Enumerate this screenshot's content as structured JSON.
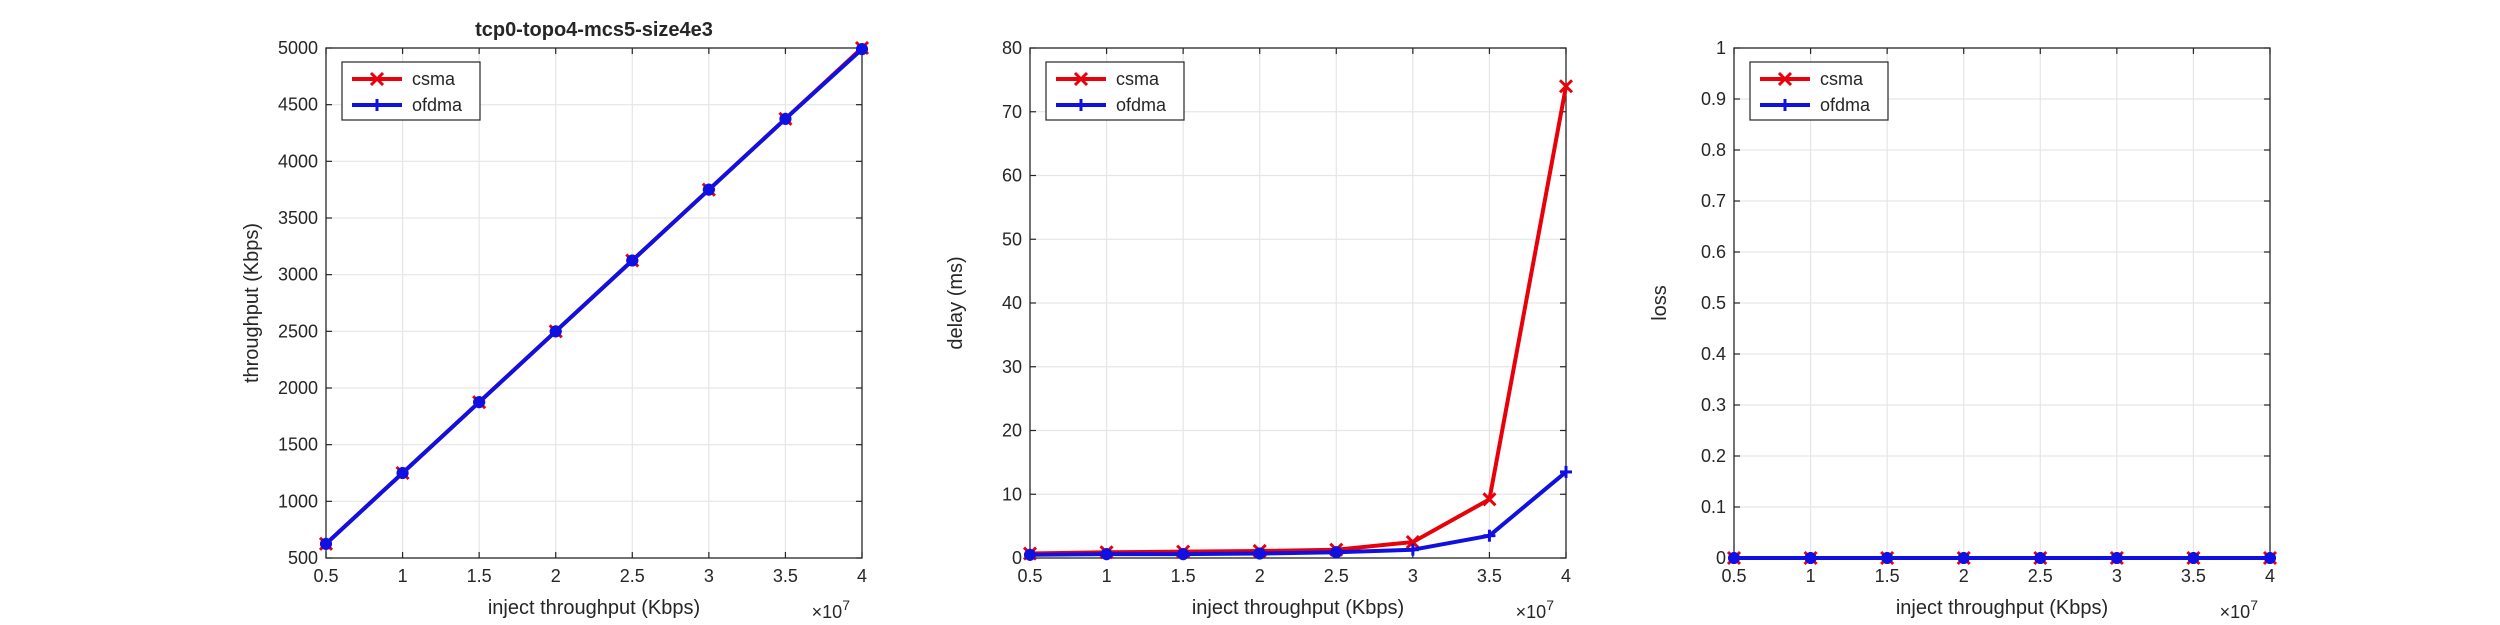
{
  "figure": {
    "title": "tcp0-topo4-mcs5-size4e3",
    "colors": {
      "csma": "#e8000b",
      "ofdma": "#1010e0",
      "grid": "#e6e6e6",
      "axis": "#262626"
    }
  },
  "chart_data": [
    {
      "type": "line",
      "title": "tcp0-topo4-mcs5-size4e3",
      "xlabel": "inject throughput (Kbps)",
      "ylabel": "throughput (Kbps)",
      "xlim": [
        0.5,
        4
      ],
      "ylim": [
        500,
        5000
      ],
      "x_exponent_label": "×10",
      "x_exponent": "7",
      "xticks": [
        0.5,
        1,
        1.5,
        2,
        2.5,
        3,
        3.5,
        4
      ],
      "yticks": [
        500,
        1000,
        1500,
        2000,
        2500,
        3000,
        3500,
        4000,
        4500,
        5000
      ],
      "grid": true,
      "legend": "top-left",
      "x": [
        0.5,
        1,
        1.5,
        2,
        2.5,
        3,
        3.5,
        4
      ],
      "series": [
        {
          "name": "csma",
          "marker": "x",
          "color": "#e8000b",
          "values": [
            625,
            1250,
            1875,
            2500,
            3125,
            3750,
            4375,
            5000
          ]
        },
        {
          "name": "ofdma",
          "marker": "+",
          "color": "#1010e0",
          "values": [
            625,
            1250,
            1875,
            2500,
            3125,
            3750,
            4375,
            4990
          ]
        }
      ]
    },
    {
      "type": "line",
      "title": "",
      "xlabel": "inject throughput (Kbps)",
      "ylabel": "delay (ms)",
      "xlim": [
        0.5,
        4
      ],
      "ylim": [
        0,
        80
      ],
      "x_exponent_label": "×10",
      "x_exponent": "7",
      "xticks": [
        0.5,
        1,
        1.5,
        2,
        2.5,
        3,
        3.5,
        4
      ],
      "yticks": [
        0,
        10,
        20,
        30,
        40,
        50,
        60,
        70,
        80
      ],
      "grid": true,
      "legend": "top-left",
      "x": [
        0.5,
        1,
        1.5,
        2,
        2.5,
        3,
        3.5,
        4
      ],
      "series": [
        {
          "name": "csma",
          "marker": "x",
          "color": "#e8000b",
          "values": [
            0.7,
            0.9,
            1.0,
            1.1,
            1.3,
            2.5,
            9.2,
            74
          ]
        },
        {
          "name": "ofdma",
          "marker": "+",
          "color": "#1010e0",
          "values": [
            0.5,
            0.6,
            0.6,
            0.7,
            0.9,
            1.3,
            3.5,
            13.5
          ]
        }
      ]
    },
    {
      "type": "line",
      "title": "",
      "xlabel": "inject throughput (Kbps)",
      "ylabel": "loss",
      "xlim": [
        0.5,
        4
      ],
      "ylim": [
        0,
        1
      ],
      "x_exponent_label": "×10",
      "x_exponent": "7",
      "xticks": [
        0.5,
        1,
        1.5,
        2,
        2.5,
        3,
        3.5,
        4
      ],
      "yticks": [
        0,
        0.1,
        0.2,
        0.3,
        0.4,
        0.5,
        0.6,
        0.7,
        0.8,
        0.9,
        1
      ],
      "grid": true,
      "legend": "top-left",
      "x": [
        0.5,
        1,
        1.5,
        2,
        2.5,
        3,
        3.5,
        4
      ],
      "series": [
        {
          "name": "csma",
          "marker": "x",
          "color": "#e8000b",
          "values": [
            0,
            0,
            0,
            0,
            0,
            0,
            0,
            0
          ]
        },
        {
          "name": "ofdma",
          "marker": "+",
          "color": "#1010e0",
          "values": [
            0,
            0,
            0,
            0,
            0,
            0,
            0,
            0
          ]
        }
      ]
    }
  ]
}
